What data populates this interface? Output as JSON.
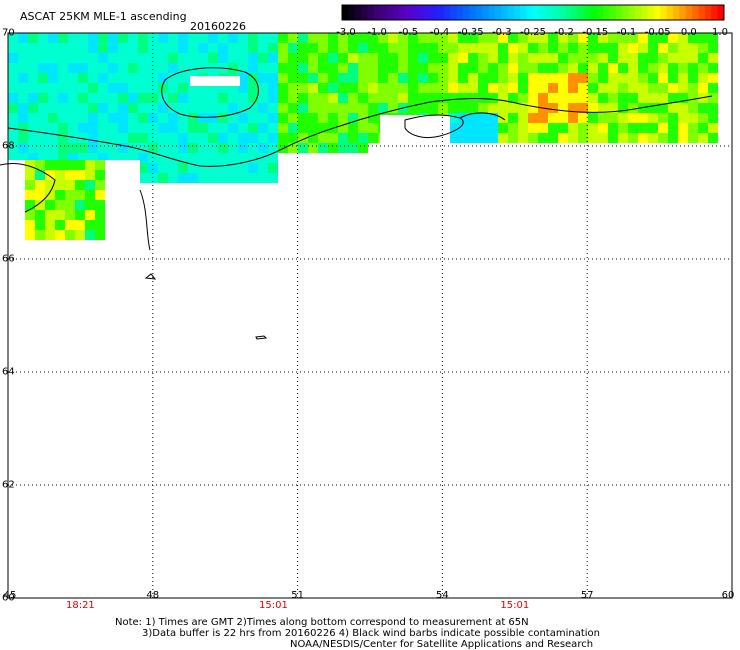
{
  "header": {
    "title": "ASCAT 25KM MLE-1 ascending",
    "date": "20160226"
  },
  "colorbar": {
    "labels": [
      "-3.0",
      "-1.0",
      "-0.5",
      "-0.4",
      "-0.35",
      "-0.3",
      "-0.25",
      "-0.2",
      "-0.15",
      "-0.1",
      "-0.05",
      "0.0",
      "1.0"
    ],
    "colors": [
      "#000000",
      "#3a0070",
      "#5a00c8",
      "#2020ff",
      "#0070ff",
      "#00b4ff",
      "#00ffff",
      "#00ffa0",
      "#00ff00",
      "#80ff00",
      "#ffff00",
      "#ff8000",
      "#ff0000"
    ]
  },
  "axes": {
    "lat_labels": [
      "70",
      "68",
      "66",
      "64",
      "62",
      "60"
    ],
    "lon_labels": [
      "45",
      "48",
      "51",
      "54",
      "57",
      "60"
    ],
    "lat_range": [
      60,
      70
    ],
    "lon_range": [
      45,
      60
    ]
  },
  "time_labels": [
    {
      "text": "18:21",
      "lon": 46.5
    },
    {
      "text": "15:01",
      "lon": 50.5
    },
    {
      "text": "15:01",
      "lon": 55.5
    }
  ],
  "time_color": "#e00000",
  "notes": {
    "line1": "Note: 1) Times are GMT 2)Times along bottom correspond to measurement at 65N",
    "line2": "3)Data buffer is 22 hrs from 20160226 4) Black wind barbs indicate possible contamination",
    "line3": "NOAA/NESDIS/Center for Satellite Applications and Research"
  }
}
